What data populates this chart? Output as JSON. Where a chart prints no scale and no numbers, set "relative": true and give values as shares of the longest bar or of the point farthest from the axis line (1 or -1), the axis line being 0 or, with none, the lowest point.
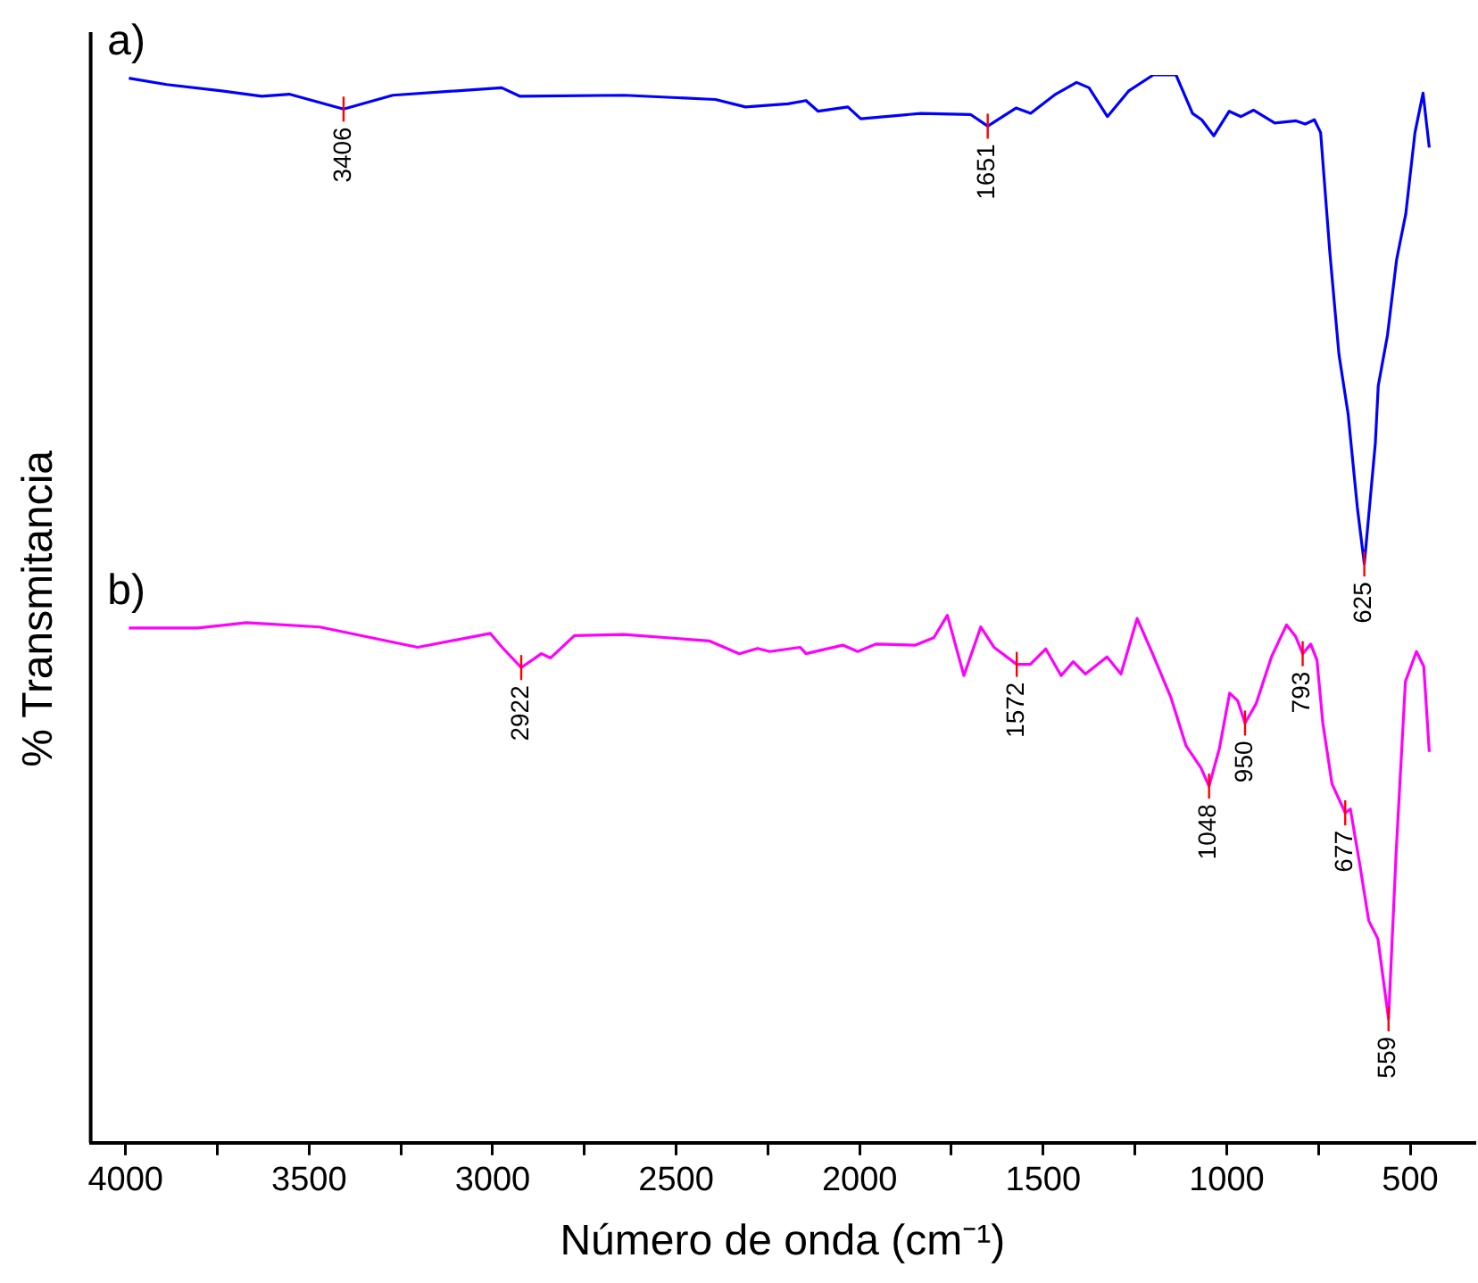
{
  "chart_data": {
    "type": "line",
    "relative": true,
    "xlabel": "Número de onda (cm⁻¹)",
    "ylabel": "% Transmitancia",
    "xlim": [
      4095,
      325
    ],
    "xticks": [
      4000,
      {
        "value": 3750,
        "label": null
      },
      3500,
      {
        "value": 3250,
        "label": null
      },
      3000,
      {
        "value": 2750,
        "label": null
      },
      2500,
      {
        "value": 2250,
        "label": null
      },
      2000,
      {
        "value": 1750,
        "label": null
      },
      1500,
      {
        "value": 1250,
        "label": null
      },
      1000,
      {
        "value": 750,
        "label": null
      },
      500
    ],
    "grid": false,
    "legend": false,
    "marker": "none",
    "line_style": "solid",
    "series": [
      {
        "name": "a)",
        "color": "#0000ff",
        "x": [
          3991,
          3888,
          3738,
          3629,
          3554,
          3406,
          3272,
          2975,
          2925,
          2642,
          2393,
          2311,
          2195,
          2146,
          2113,
          2032,
          1997,
          1833,
          1698,
          1651,
          1574,
          1534,
          1466,
          1409,
          1375,
          1325,
          1267,
          1200,
          1138,
          1093,
          1068,
          1035,
          993,
          961,
          927,
          869,
          811,
          786,
          761,
          744,
          719,
          694,
          669,
          644,
          625,
          595,
          587,
          562,
          537,
          512,
          487,
          465,
          448
        ],
        "values": [
          0.997,
          0.991,
          0.985,
          0.98,
          0.982,
          0.968,
          0.981,
          0.988,
          0.98,
          0.981,
          0.977,
          0.97,
          0.973,
          0.976,
          0.966,
          0.97,
          0.959,
          0.964,
          0.963,
          0.952,
          0.969,
          0.964,
          0.982,
          0.993,
          0.988,
          0.961,
          0.985,
          1,
          1,
          0.964,
          0.958,
          0.943,
          0.966,
          0.961,
          0.967,
          0.955,
          0.957,
          0.954,
          0.958,
          0.946,
          0.834,
          0.738,
          0.682,
          0.595,
          0.542,
          0.655,
          0.709,
          0.756,
          0.827,
          0.87,
          0.946,
          0.983,
          0.932
        ]
      },
      {
        "name": "b)",
        "color": "#ff00ff",
        "x": [
          3991,
          3804,
          3671,
          3471,
          3204,
          3006,
          2974,
          2922,
          2867,
          2842,
          2777,
          2642,
          2410,
          2328,
          2278,
          2245,
          2162,
          2146,
          2046,
          2005,
          1956,
          1848,
          1798,
          1761,
          1716,
          1670,
          1634,
          1572,
          1535,
          1493,
          1451,
          1418,
          1385,
          1326,
          1288,
          1244,
          1202,
          1152,
          1111,
          1070,
          1048,
          1020,
          992,
          970,
          950,
          920,
          878,
          837,
          812,
          793,
          771,
          754,
          738,
          713,
          677,
          663,
          638,
          613,
          588,
          559,
          538,
          513,
          483,
          463,
          448
        ],
        "values": [
          0.482,
          0.482,
          0.487,
          0.483,
          0.464,
          0.477,
          0.464,
          0.445,
          0.458,
          0.454,
          0.475,
          0.476,
          0.47,
          0.458,
          0.463,
          0.46,
          0.464,
          0.458,
          0.466,
          0.46,
          0.467,
          0.466,
          0.473,
          0.494,
          0.4375,
          0.483,
          0.464,
          0.448,
          0.448,
          0.4625,
          0.4375,
          0.4505,
          0.439,
          0.455,
          0.439,
          0.491,
          0.458,
          0.417,
          0.372,
          0.351,
          0.334,
          0.369,
          0.421,
          0.414,
          0.393,
          0.411,
          0.455,
          0.485,
          0.474,
          0.458,
          0.467,
          0.452,
          0.393,
          0.336,
          0.309,
          0.3125,
          0.262,
          0.208,
          0.191,
          0.116,
          0.274,
          0.432,
          0.46,
          0.446,
          0.366
        ]
      }
    ],
    "annotations": [
      {
        "text": "3406",
        "x": 3406,
        "y": 0.968
      },
      {
        "text": "1651",
        "x": 1651,
        "y": 0.952
      },
      {
        "text": "625",
        "x": 625,
        "y": 0.542
      },
      {
        "text": "2922",
        "x": 2922,
        "y": 0.445
      },
      {
        "text": "1572",
        "x": 1572,
        "y": 0.448
      },
      {
        "text": "1048",
        "x": 1048,
        "y": 0.334
      },
      {
        "text": "950",
        "x": 950,
        "y": 0.393
      },
      {
        "text": "793",
        "x": 793,
        "y": 0.458
      },
      {
        "text": "677",
        "x": 677,
        "y": 0.309
      },
      {
        "text": "559",
        "x": 559,
        "y": 0.116
      }
    ]
  }
}
